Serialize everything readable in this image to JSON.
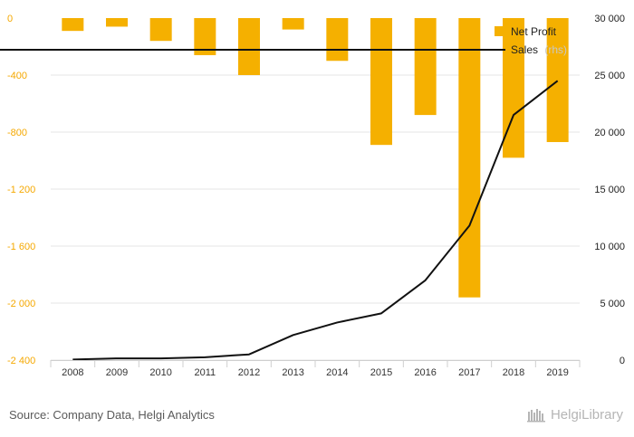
{
  "chart_data": {
    "type": "bar",
    "categories": [
      "2008",
      "2009",
      "2010",
      "2011",
      "2012",
      "2013",
      "2014",
      "2015",
      "2016",
      "2017",
      "2018",
      "2019"
    ],
    "series": [
      {
        "name": "Net Profit",
        "type": "bar",
        "axis": "left",
        "color": "#f5b000",
        "values": [
          -90,
          -60,
          -160,
          -260,
          -400,
          -80,
          -300,
          -890,
          -680,
          -1960,
          -980,
          -870
        ]
      },
      {
        "name": "Sales",
        "name_suffix": "(rhs)",
        "type": "line",
        "axis": "right",
        "color": "#111111",
        "values": [
          50,
          150,
          150,
          250,
          500,
          2200,
          3300,
          4100,
          7000,
          11800,
          21500,
          24500
        ]
      }
    ],
    "left_axis": {
      "min": -2400,
      "max": 0,
      "ticks": [
        0,
        -400,
        -800,
        -1200,
        -1600,
        -2000,
        -2400
      ],
      "tick_labels": [
        "0",
        "-400",
        "-800",
        "-1 200",
        "-1 600",
        "-2 000",
        "-2 400"
      ]
    },
    "right_axis": {
      "min": 0,
      "max": 30000,
      "ticks": [
        30000,
        25000,
        20000,
        15000,
        10000,
        5000,
        0
      ],
      "tick_labels": [
        "30 000",
        "25 000",
        "20 000",
        "15 000",
        "10 000",
        "5 000",
        "0"
      ]
    },
    "legend_position": "top-right",
    "grid": true
  },
  "footer": {
    "source": "Source: Company Data, Helgi Analytics",
    "brand": "HelgiLibrary"
  },
  "colors": {
    "bar": "#f5b000",
    "line": "#111111",
    "left_tick": "#f5a800"
  }
}
